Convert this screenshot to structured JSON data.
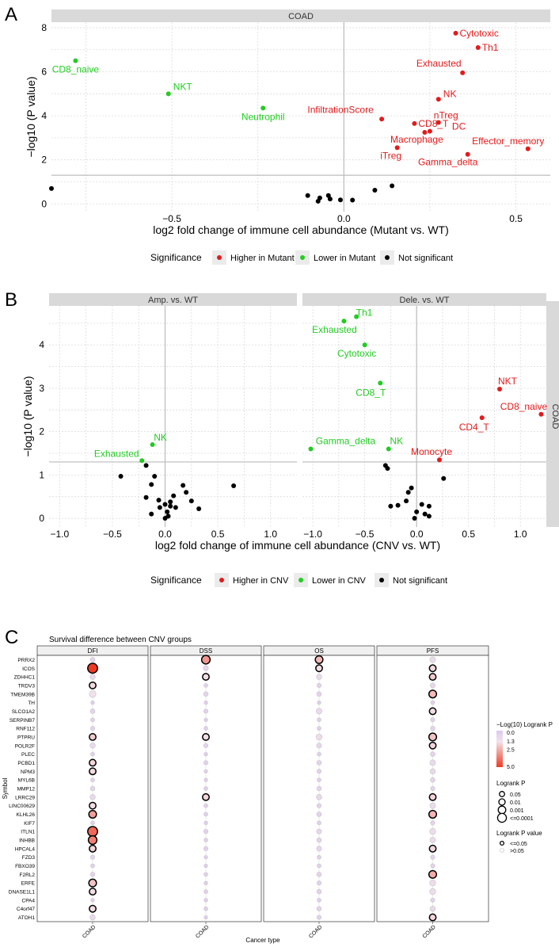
{
  "panelA": {
    "letter": "A",
    "strip": "COAD",
    "xlabel": "log2 fold change of immune cell abundance (Mutant vs. WT)",
    "ylabel": "−log10 (P value)",
    "xlim": [
      -0.85,
      0.6
    ],
    "ylim": [
      -0.35,
      8.25
    ],
    "xticks": [
      {
        "v": -0.5,
        "label": "−0.5"
      },
      {
        "v": 0,
        "label": "0.0"
      },
      {
        "v": 0.5,
        "label": "0.5"
      }
    ],
    "yticks": [
      {
        "v": 0,
        "label": "0"
      },
      {
        "v": 2,
        "label": "2"
      },
      {
        "v": 4,
        "label": "4"
      },
      {
        "v": 6,
        "label": "6"
      },
      {
        "v": 8,
        "label": "8"
      }
    ],
    "hline": 1.3,
    "points": [
      {
        "x": 0.325,
        "y": 7.75,
        "label": "Cytotoxic",
        "g": "up"
      },
      {
        "x": 0.39,
        "y": 7.1,
        "label": "Th1",
        "g": "up"
      },
      {
        "x": 0.345,
        "y": 5.95,
        "label": "Exhausted",
        "g": "up"
      },
      {
        "x": 0.275,
        "y": 4.75,
        "label": "NK",
        "g": "up"
      },
      {
        "x": 0.11,
        "y": 3.85,
        "label": "InfiltrationScore",
        "g": "up"
      },
      {
        "x": 0.205,
        "y": 3.65,
        "label": "CD8_T",
        "g": "up"
      },
      {
        "x": 0.275,
        "y": 3.7,
        "label": "nTreg",
        "g": "up"
      },
      {
        "x": 0.25,
        "y": 3.3,
        "label": "DC",
        "g": "up"
      },
      {
        "x": 0.235,
        "y": 3.25,
        "label": "Macrophage",
        "g": "up"
      },
      {
        "x": 0.155,
        "y": 2.55,
        "label": "iTreg",
        "g": "up"
      },
      {
        "x": 0.36,
        "y": 2.25,
        "label": "Gamma_delta",
        "g": "up"
      },
      {
        "x": 0.535,
        "y": 2.5,
        "label": "Effector_memory",
        "g": "up"
      },
      {
        "x": -0.78,
        "y": 6.5,
        "label": "CD8_naive",
        "g": "down"
      },
      {
        "x": -0.51,
        "y": 5.0,
        "label": "NKT",
        "g": "down"
      },
      {
        "x": -0.235,
        "y": 4.35,
        "label": "Neutrophil",
        "g": "down"
      },
      {
        "x": -0.85,
        "y": 0.7,
        "g": "ns"
      },
      {
        "x": -0.105,
        "y": 0.38,
        "g": "ns"
      },
      {
        "x": -0.075,
        "y": 0.12,
        "g": "ns"
      },
      {
        "x": -0.07,
        "y": 0.27,
        "g": "ns"
      },
      {
        "x": -0.045,
        "y": 0.38,
        "g": "ns"
      },
      {
        "x": -0.04,
        "y": 0.22,
        "g": "ns"
      },
      {
        "x": -0.01,
        "y": 0.18,
        "g": "ns"
      },
      {
        "x": 0.025,
        "y": 0.17,
        "g": "ns"
      },
      {
        "x": 0.09,
        "y": 0.62,
        "g": "ns"
      },
      {
        "x": 0.14,
        "y": 0.82,
        "g": "ns"
      }
    ],
    "legend": {
      "title": "Significance",
      "items": [
        {
          "label": "Higher in Mutant",
          "g": "up"
        },
        {
          "label": "Lower in Mutant",
          "g": "down"
        },
        {
          "label": "Not significant",
          "g": "ns"
        }
      ]
    }
  },
  "panelB": {
    "letter": "B",
    "side_strip": "COAD",
    "xlabel": "log2 fold change of immune cell abundance (CNV vs. WT)",
    "ylabel": "−log10 (P value)",
    "xlim": [
      -1.1,
      1.25
    ],
    "ylim": [
      -0.2,
      4.9
    ],
    "xticks": [
      {
        "v": -1,
        "label": "−1.0"
      },
      {
        "v": -0.5,
        "label": "−0.5"
      },
      {
        "v": 0,
        "label": "0.0"
      },
      {
        "v": 0.5,
        "label": "0.5"
      },
      {
        "v": 1,
        "label": "1.0"
      }
    ],
    "yticks": [
      {
        "v": 0,
        "label": "0"
      },
      {
        "v": 1,
        "label": "1"
      },
      {
        "v": 2,
        "label": "2"
      },
      {
        "v": 3,
        "label": "3"
      },
      {
        "v": 4,
        "label": "4"
      }
    ],
    "hline": 1.3,
    "facets": [
      {
        "title": "Amp. vs. WT",
        "points": [
          {
            "x": -0.12,
            "y": 1.7,
            "label": "NK",
            "g": "down"
          },
          {
            "x": -0.22,
            "y": 1.33,
            "label": "Exhausted",
            "g": "down"
          },
          {
            "x": -0.42,
            "y": 0.97,
            "g": "ns"
          },
          {
            "x": -0.18,
            "y": 1.22,
            "g": "ns"
          },
          {
            "x": -0.1,
            "y": 0.97,
            "g": "ns"
          },
          {
            "x": -0.13,
            "y": 0.78,
            "g": "ns"
          },
          {
            "x": -0.06,
            "y": 0.42,
            "g": "ns"
          },
          {
            "x": -0.18,
            "y": 0.48,
            "g": "ns"
          },
          {
            "x": 0.0,
            "y": 0.32,
            "g": "ns"
          },
          {
            "x": 0.05,
            "y": 0.38,
            "g": "ns"
          },
          {
            "x": 0.08,
            "y": 0.52,
            "g": "ns"
          },
          {
            "x": 0.1,
            "y": 0.25,
            "g": "ns"
          },
          {
            "x": 0.2,
            "y": 0.6,
            "g": "ns"
          },
          {
            "x": 0.17,
            "y": 0.76,
            "g": "ns"
          },
          {
            "x": 0.25,
            "y": 0.4,
            "g": "ns"
          },
          {
            "x": 0.32,
            "y": 0.22,
            "g": "ns"
          },
          {
            "x": 0.65,
            "y": 0.75,
            "g": "ns"
          },
          {
            "x": -0.13,
            "y": 0.1,
            "g": "ns"
          },
          {
            "x": -0.05,
            "y": 0.25,
            "g": "ns"
          },
          {
            "x": 0.02,
            "y": 0.15,
            "g": "ns"
          },
          {
            "x": 0.05,
            "y": 0.28,
            "g": "ns"
          },
          {
            "x": 0.03,
            "y": 0.05,
            "g": "ns"
          },
          {
            "x": 0.0,
            "y": 0.0,
            "g": "ns"
          }
        ]
      },
      {
        "title": "Dele. vs. WT",
        "points": [
          {
            "x": -0.58,
            "y": 4.65,
            "label": "Th1",
            "g": "down"
          },
          {
            "x": -0.7,
            "y": 4.55,
            "label": "Exhausted",
            "g": "down"
          },
          {
            "x": -0.5,
            "y": 4.0,
            "label": "Cytotoxic",
            "g": "down"
          },
          {
            "x": -0.35,
            "y": 3.12,
            "label": "CD8_T",
            "g": "down"
          },
          {
            "x": -0.27,
            "y": 1.6,
            "label": "NK",
            "g": "down"
          },
          {
            "x": -1.02,
            "y": 1.6,
            "label": "Gamma_delta",
            "g": "down"
          },
          {
            "x": 0.8,
            "y": 2.98,
            "label": "NKT",
            "g": "up"
          },
          {
            "x": 1.2,
            "y": 2.4,
            "label": "CD8_naive",
            "g": "up"
          },
          {
            "x": 0.63,
            "y": 2.32,
            "label": "CD4_T",
            "g": "up"
          },
          {
            "x": 0.22,
            "y": 1.35,
            "label": "Monocyte",
            "g": "up"
          },
          {
            "x": -0.3,
            "y": 1.22,
            "g": "ns"
          },
          {
            "x": -0.28,
            "y": 1.15,
            "g": "ns"
          },
          {
            "x": 0.26,
            "y": 0.92,
            "g": "ns"
          },
          {
            "x": -0.05,
            "y": 0.7,
            "g": "ns"
          },
          {
            "x": -0.08,
            "y": 0.6,
            "g": "ns"
          },
          {
            "x": -0.1,
            "y": 0.4,
            "g": "ns"
          },
          {
            "x": -0.18,
            "y": 0.3,
            "g": "ns"
          },
          {
            "x": -0.25,
            "y": 0.28,
            "g": "ns"
          },
          {
            "x": 0.05,
            "y": 0.32,
            "g": "ns"
          },
          {
            "x": 0.12,
            "y": 0.28,
            "g": "ns"
          },
          {
            "x": 0.0,
            "y": 0.15,
            "g": "ns"
          },
          {
            "x": 0.08,
            "y": 0.1,
            "g": "ns"
          },
          {
            "x": 0.12,
            "y": 0.05,
            "g": "ns"
          },
          {
            "x": -0.02,
            "y": 0.0,
            "g": "ns"
          }
        ]
      }
    ],
    "legend": {
      "title": "Significance",
      "items": [
        {
          "label": "Higher in CNV",
          "g": "up"
        },
        {
          "label": "Lower in CNV",
          "g": "down"
        },
        {
          "label": "Not significant",
          "g": "ns"
        }
      ]
    }
  },
  "panelC": {
    "letter": "C",
    "title": "Survival difference between CNV groups",
    "ylabel": "Symbol",
    "xlabel": "Cancer type",
    "facets": [
      "DFI",
      "DSS",
      "OS",
      "PFS"
    ],
    "xtick": "COAD",
    "genes": [
      "PRRX2",
      "ICOS",
      "ZDHHC1",
      "TRDV3",
      "TMEM39B",
      "TH",
      "SLCO1A2",
      "SERPINB7",
      "RNF112",
      "PTPRU",
      "POLR2F",
      "PLEC",
      "PCBD1",
      "NPM3",
      "MYL6B",
      "MMP12",
      "LRRC29",
      "LINC00629",
      "KLHL26",
      "KIF7",
      "ITLN1",
      "INHBB",
      "HPCAL4",
      "FZD3",
      "FBXO39",
      "F2RL2",
      "ERFE",
      "DNASE1L1",
      "CPA4",
      "C4orf47",
      "ATOH1"
    ],
    "logp": {
      "DFI": [
        0.6,
        5.0,
        0.8,
        1.5,
        1.2,
        0.3,
        0.6,
        0.4,
        0.5,
        1.8,
        0.8,
        0.4,
        1.6,
        1.5,
        0.4,
        0.6,
        0.8,
        1.4,
        2.8,
        0.4,
        4.0,
        3.5,
        1.6,
        0.5,
        0.4,
        0.6,
        2.0,
        1.4,
        0.3,
        1.4,
        0.8
      ],
      "DSS": [
        3.0,
        0.7,
        1.4,
        0.4,
        0.6,
        0.3,
        0.5,
        0.3,
        0.4,
        1.4,
        0.5,
        0.3,
        0.5,
        0.3,
        0.3,
        0.4,
        1.6,
        0.4,
        0.4,
        0.3,
        0.5,
        0.4,
        0.5,
        0.3,
        0.3,
        0.4,
        0.3,
        0.4,
        0.3,
        0.4,
        0.3
      ],
      "OS": [
        2.2,
        1.4,
        0.8,
        0.5,
        0.6,
        0.3,
        0.9,
        0.4,
        0.4,
        1.0,
        0.7,
        0.4,
        0.6,
        0.5,
        0.4,
        0.6,
        0.8,
        0.5,
        0.6,
        0.4,
        0.7,
        0.6,
        0.7,
        0.4,
        0.4,
        0.6,
        0.5,
        0.6,
        0.4,
        0.6,
        0.5
      ],
      "PFS": [
        0.9,
        1.5,
        1.8,
        0.7,
        2.2,
        0.4,
        1.4,
        0.5,
        0.6,
        2.0,
        1.6,
        0.6,
        0.9,
        0.8,
        0.6,
        0.5,
        1.6,
        0.9,
        2.3,
        0.5,
        1.0,
        0.9,
        1.5,
        0.5,
        0.5,
        2.5,
        1.0,
        1.0,
        0.5,
        0.8,
        1.6
      ]
    },
    "legend": {
      "color_title": "−Log(10) Logrank P",
      "color_ticks": [
        {
          "v": 0.0,
          "label": "0.0"
        },
        {
          "v": 1.3,
          "label": "1.3"
        },
        {
          "v": 2.5,
          "label": "2.5"
        },
        {
          "v": 5.0,
          "label": "5.0"
        }
      ],
      "size_title": "Logrank P",
      "size_items": [
        "0.05",
        "0.01",
        "0.001",
        "<=0.0001"
      ],
      "sig_title": "Logrank P value",
      "sig_items": [
        "<=0.05",
        ">0.05"
      ]
    }
  },
  "chart_data": [
    {
      "type": "scatter",
      "title": "COAD",
      "xlabel": "log2 fold change of immune cell abundance (Mutant vs. WT)",
      "ylabel": "−log10 (P value)",
      "xlim": [
        -0.85,
        0.6
      ],
      "ylim": [
        0,
        8.25
      ],
      "threshold": 1.3
    },
    {
      "type": "scatter",
      "title": "COAD (Amp. vs. WT | Dele. vs. WT)",
      "xlabel": "log2 fold change of immune cell abundance (CNV vs. WT)",
      "ylabel": "−log10 (P value)",
      "xlim": [
        -1.1,
        1.25
      ],
      "ylim": [
        0,
        4.9
      ],
      "threshold": 1.3
    },
    {
      "type": "heatmap",
      "title": "Survival difference between CNV groups",
      "xlabel": "Cancer type",
      "ylabel": "Symbol",
      "columns": [
        "DFI",
        "DSS",
        "OS",
        "PFS"
      ]
    }
  ],
  "colors": {
    "up": "#e41a1c",
    "down": "#22cc22",
    "ns": "#000000",
    "strip": "#d9d9d9",
    "grid": "#dcdcdc",
    "low": "#d9c8f0",
    "mid": "#f3e3ea",
    "high": "#ee3a22"
  }
}
